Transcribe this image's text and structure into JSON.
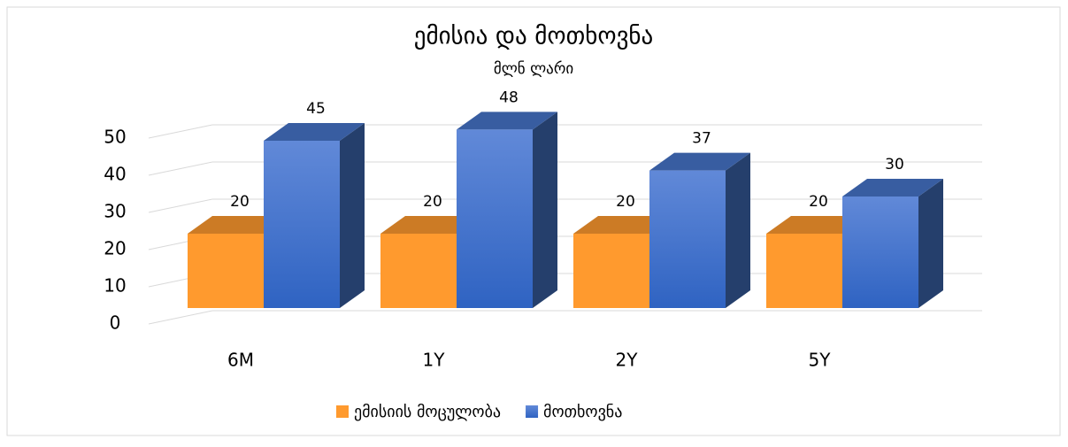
{
  "chart_data": {
    "type": "bar3d",
    "title": "ემისია და მოთხოვნა",
    "subtitle": "მლნ ლარი",
    "categories": [
      "6M",
      "1Y",
      "2Y",
      "5Y"
    ],
    "series": [
      {
        "name": "ემისიის მოცულობა",
        "color": "#ff9a2e",
        "values": [
          20,
          20,
          20,
          20
        ]
      },
      {
        "name": "მოთხოვნა",
        "color": "#4472c4",
        "values": [
          45,
          48,
          37,
          30
        ]
      }
    ],
    "ylim": [
      0,
      50
    ],
    "yticks": [
      0,
      10,
      20,
      30,
      40,
      50
    ],
    "grid": true,
    "legend": "bottom"
  }
}
